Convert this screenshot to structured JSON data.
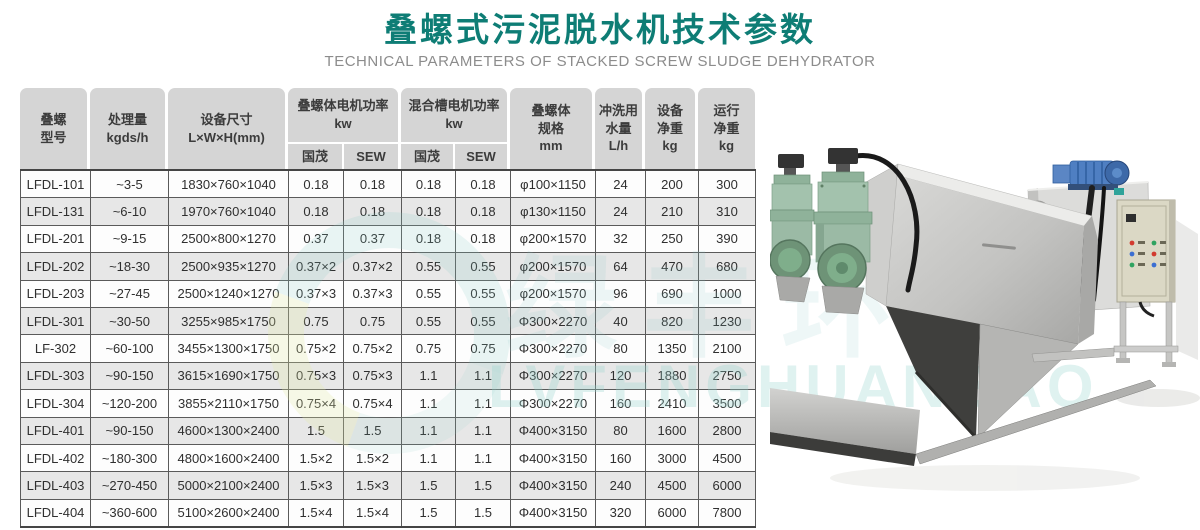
{
  "page": {
    "title": "叠螺式污泥脱水机技术参数",
    "subtitle": "TECHNICAL PARAMETERS OF STACKED SCREW SLUDGE DEHYDRATOR"
  },
  "colors": {
    "title_teal": "#0e7d75",
    "subtitle_gray": "#8c8c8c",
    "header_bg": "#d5d5d5",
    "row_alt": "#e7e7e7",
    "grid_border": "#5a5a5a",
    "watermark_teal": "#8fccc6",
    "motor_green": "#9bbaa5",
    "motor_blue": "#4f7fc2",
    "cabinet_beige": "#dbd8c5"
  },
  "watermark": {
    "cjk_text": "绿丰环保",
    "latin_text": "LVFENGHUANBAO"
  },
  "table": {
    "headers": {
      "model": "叠螺\n型号",
      "capacity": "处理量\nkgds/h",
      "dimensions": "设备尺寸\nL×W×H(mm)",
      "screw_motor_group": "叠螺体电机功率\nkw",
      "mix_motor_group": "混合槽电机功率\nkw",
      "brand_guomao_1": "国茂",
      "brand_sew_1": "SEW",
      "brand_guomao_2": "国茂",
      "brand_sew_2": "SEW",
      "screw_spec": "叠螺体\n规格\nmm",
      "wash_water": "冲洗用\n水量\nL/h",
      "net_weight": "设备\n净重\nkg",
      "operating_weight": "运行\n净重\nkg"
    },
    "column_keys": [
      "model",
      "capacity",
      "dimensions",
      "screw-motor-guomao",
      "screw-motor-sew",
      "mix-motor-guomao",
      "mix-motor-sew",
      "screw-spec",
      "wash-water",
      "net-weight",
      "operating-weight"
    ],
    "rows": [
      [
        "LFDL-101",
        "~3-5",
        "1830×760×1040",
        "0.18",
        "0.18",
        "0.18",
        "0.18",
        "φ100×1150",
        "24",
        "200",
        "300"
      ],
      [
        "LFDL-131",
        "~6-10",
        "1970×760×1040",
        "0.18",
        "0.18",
        "0.18",
        "0.18",
        "φ130×1150",
        "24",
        "210",
        "310"
      ],
      [
        "LFDL-201",
        "~9-15",
        "2500×800×1270",
        "0.37",
        "0.37",
        "0.18",
        "0.18",
        "φ200×1570",
        "32",
        "250",
        "390"
      ],
      [
        "LFDL-202",
        "~18-30",
        "2500×935×1270",
        "0.37×2",
        "0.37×2",
        "0.55",
        "0.55",
        "φ200×1570",
        "64",
        "470",
        "680"
      ],
      [
        "LFDL-203",
        "~27-45",
        "2500×1240×1270",
        "0.37×3",
        "0.37×3",
        "0.55",
        "0.55",
        "φ200×1570",
        "96",
        "690",
        "1000"
      ],
      [
        "LFDL-301",
        "~30-50",
        "3255×985×1750",
        "0.75",
        "0.75",
        "0.55",
        "0.55",
        "Φ300×2270",
        "40",
        "820",
        "1230"
      ],
      [
        "LF-302",
        "~60-100",
        "3455×1300×1750",
        "0.75×2",
        "0.75×2",
        "0.75",
        "0.75",
        "Φ300×2270",
        "80",
        "1350",
        "2100"
      ],
      [
        "LFDL-303",
        "~90-150",
        "3615×1690×1750",
        "0.75×3",
        "0.75×3",
        "1.1",
        "1.1",
        "Φ300×2270",
        "120",
        "1880",
        "2750"
      ],
      [
        "LFDL-304",
        "~120-200",
        "3855×2110×1750",
        "0.75×4",
        "0.75×4",
        "1.1",
        "1.1",
        "Φ300×2270",
        "160",
        "2410",
        "3500"
      ],
      [
        "LFDL-401",
        "~90-150",
        "4600×1300×2400",
        "1.5",
        "1.5",
        "1.1",
        "1.1",
        "Φ400×3150",
        "80",
        "1600",
        "2800"
      ],
      [
        "LFDL-402",
        "~180-300",
        "4800×1600×2400",
        "1.5×2",
        "1.5×2",
        "1.1",
        "1.1",
        "Φ400×3150",
        "160",
        "3000",
        "4500"
      ],
      [
        "LFDL-403",
        "~270-450",
        "5000×2100×2400",
        "1.5×3",
        "1.5×3",
        "1.5",
        "1.5",
        "Φ400×3150",
        "240",
        "4500",
        "6000"
      ],
      [
        "LFDL-404",
        "~360-600",
        "5100×2600×2400",
        "1.5×4",
        "1.5×4",
        "1.5",
        "1.5",
        "Φ400×3150",
        "320",
        "6000",
        "7800"
      ]
    ]
  }
}
